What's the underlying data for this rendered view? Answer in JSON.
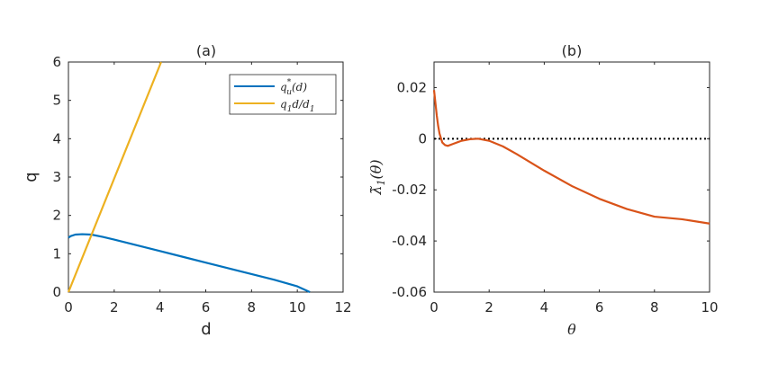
{
  "chart_data": [
    {
      "type": "line",
      "title": "(a)",
      "xlabel": "d",
      "ylabel": "q",
      "xlim": [
        0,
        12
      ],
      "ylim": [
        0,
        6
      ],
      "xticks": [
        0,
        2,
        4,
        6,
        8,
        10,
        12
      ],
      "yticks": [
        0,
        1,
        2,
        3,
        4,
        5,
        6
      ],
      "xtick_labels": [
        "0",
        "2",
        "4",
        "6",
        "8",
        "10",
        "12"
      ],
      "ytick_labels": [
        "0",
        "1",
        "2",
        "3",
        "4",
        "5",
        "6"
      ],
      "legend_position": "top-right",
      "series": [
        {
          "name": "q_u^*(d)",
          "legend_main": "q",
          "legend_sub": "u",
          "legend_sup": "*",
          "legend_rest": "(d)",
          "color": "#0072BD",
          "x": [
            0,
            0.1,
            0.3,
            0.6,
            1.0,
            1.5,
            2,
            3,
            4,
            5,
            6,
            7,
            8,
            9,
            10,
            10.55
          ],
          "y": [
            1.42,
            1.46,
            1.5,
            1.51,
            1.5,
            1.44,
            1.37,
            1.22,
            1.07,
            0.92,
            0.77,
            0.62,
            0.47,
            0.32,
            0.15,
            0.0
          ]
        },
        {
          "name": "q_1 d/d_1",
          "legend_main": "q",
          "legend_sub": "1",
          "legend_rest": "d/d",
          "legend_sub2": "1",
          "color": "#EDB120",
          "x": [
            0,
            4.05
          ],
          "y": [
            0,
            6.0
          ]
        }
      ]
    },
    {
      "type": "line",
      "title": "(b)",
      "xlabel": "θ",
      "ylabel": "λ̃1(θ)",
      "ylabel_parts": {
        "main": "λ̃",
        "sub": "1",
        "rest": "(θ)"
      },
      "xlim": [
        0,
        10
      ],
      "ylim": [
        -0.06,
        0.03
      ],
      "xticks": [
        0,
        2,
        4,
        6,
        8,
        10
      ],
      "yticks": [
        -0.06,
        -0.04,
        -0.02,
        0,
        0.02
      ],
      "xtick_labels": [
        "0",
        "2",
        "4",
        "6",
        "8",
        "10"
      ],
      "ytick_labels": [
        "-0.06",
        "-0.04",
        "-0.02",
        "0",
        "0.02"
      ],
      "reference_line": {
        "y": 0,
        "style": "dotted",
        "color": "#000000"
      },
      "series": [
        {
          "name": "lambda1",
          "color": "#D95319",
          "x": [
            0,
            0.05,
            0.1,
            0.15,
            0.2,
            0.3,
            0.4,
            0.5,
            0.7,
            1.0,
            1.3,
            1.6,
            2.0,
            2.5,
            3,
            4,
            5,
            6,
            7,
            8,
            9,
            10
          ],
          "y": [
            0.019,
            0.014,
            0.009,
            0.005,
            0.002,
            -0.0015,
            -0.0025,
            -0.0028,
            -0.002,
            -0.0008,
            -0.0002,
            0.0,
            -0.0008,
            -0.003,
            -0.006,
            -0.0125,
            -0.0185,
            -0.0235,
            -0.0275,
            -0.0305,
            -0.0315,
            -0.0332
          ]
        }
      ]
    }
  ]
}
